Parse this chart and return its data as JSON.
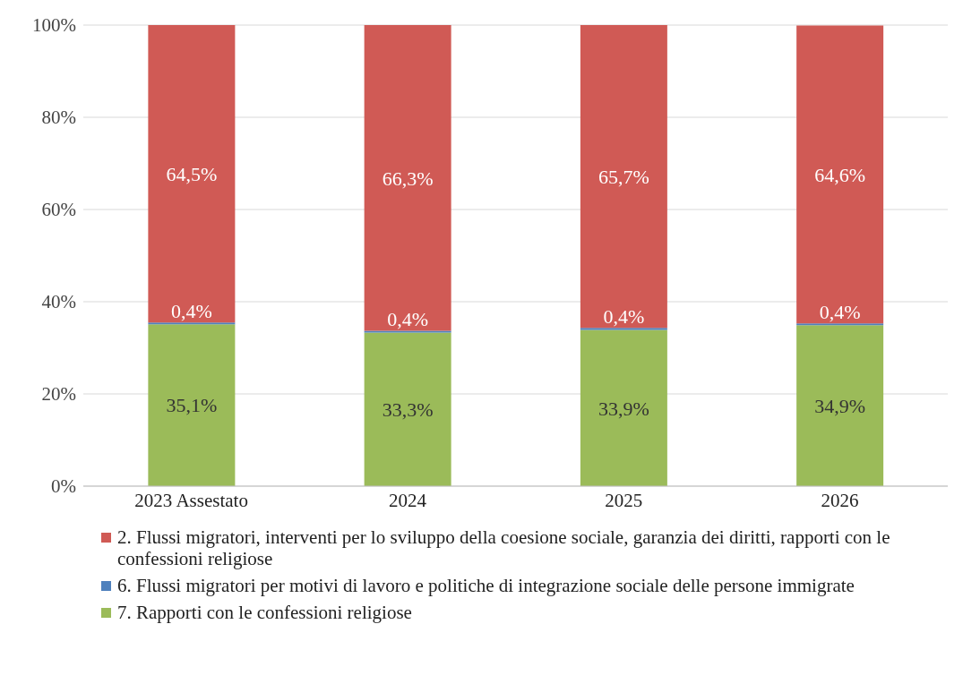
{
  "chart_data": {
    "type": "bar",
    "stacked": true,
    "categories": [
      "2023 Assestato",
      "2024",
      "2025",
      "2026"
    ],
    "series": [
      {
        "name": "7. Rapporti con le confessioni religiose",
        "color": "#9bbb59",
        "values": [
          35.1,
          33.3,
          33.9,
          34.9
        ],
        "value_labels": [
          "35,1%",
          "33,3%",
          "33,9%",
          "34,9%"
        ]
      },
      {
        "name": "6. Flussi migratori per motivi di lavoro e politiche di integrazione sociale delle persone immigrate",
        "color": "#4f81bd",
        "values": [
          0.4,
          0.4,
          0.4,
          0.4
        ],
        "value_labels": [
          "0,4%",
          "0,4%",
          "0,4%",
          "0,4%"
        ]
      },
      {
        "name": "2. Flussi migratori, interventi per lo sviluppo della coesione sociale, garanzia dei diritti, rapporti con le confessioni religiose",
        "color": "#d05a55",
        "values": [
          64.5,
          66.3,
          65.7,
          64.6
        ],
        "value_labels": [
          "64,5%",
          "66,3%",
          "65,7%",
          "64,6%"
        ]
      }
    ],
    "ylim": [
      0,
      100
    ],
    "yticks": [
      {
        "value": 0,
        "label": "0%"
      },
      {
        "value": 20,
        "label": "20%"
      },
      {
        "value": 40,
        "label": "40%"
      },
      {
        "value": 60,
        "label": "60%"
      },
      {
        "value": 80,
        "label": "80%"
      },
      {
        "value": 100,
        "label": "100%"
      }
    ],
    "grid": "y",
    "legend": "bottom"
  }
}
